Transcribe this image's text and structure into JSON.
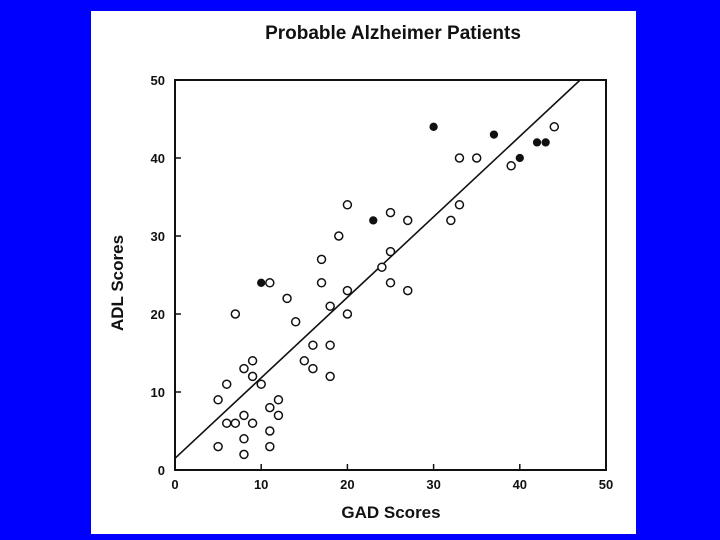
{
  "slide": {
    "background": "#0000ff",
    "panel_color": "#ffffff"
  },
  "chart_data": {
    "type": "scatter",
    "title": "Probable Alzheimer Patients",
    "xlabel": "GAD Scores",
    "ylabel": "ADL Scores",
    "xlim": [
      0,
      50
    ],
    "ylim": [
      0,
      50
    ],
    "xticks": [
      0,
      10,
      20,
      30,
      40,
      50
    ],
    "yticks": [
      0,
      10,
      20,
      30,
      40,
      50
    ],
    "grid": false,
    "legend": "none",
    "series": [
      {
        "marker": "open-circle",
        "points": [
          [
            5,
            3
          ],
          [
            5,
            9
          ],
          [
            6,
            6
          ],
          [
            6,
            11
          ],
          [
            7,
            6
          ],
          [
            7,
            20
          ],
          [
            8,
            2
          ],
          [
            8,
            4
          ],
          [
            8,
            7
          ],
          [
            8,
            13
          ],
          [
            9,
            6
          ],
          [
            9,
            12
          ],
          [
            9,
            14
          ],
          [
            10,
            11
          ],
          [
            11,
            3
          ],
          [
            11,
            5
          ],
          [
            11,
            8
          ],
          [
            11,
            24
          ],
          [
            12,
            7
          ],
          [
            12,
            9
          ],
          [
            13,
            22
          ],
          [
            14,
            19
          ],
          [
            15,
            14
          ],
          [
            16,
            13
          ],
          [
            16,
            16
          ],
          [
            17,
            24
          ],
          [
            17,
            27
          ],
          [
            18,
            12
          ],
          [
            18,
            16
          ],
          [
            18,
            21
          ],
          [
            19,
            30
          ],
          [
            20,
            20
          ],
          [
            20,
            23
          ],
          [
            20,
            34
          ],
          [
            24,
            26
          ],
          [
            25,
            24
          ],
          [
            25,
            28
          ],
          [
            25,
            33
          ],
          [
            27,
            23
          ],
          [
            27,
            32
          ],
          [
            32,
            32
          ],
          [
            33,
            34
          ],
          [
            33,
            40
          ],
          [
            35,
            40
          ],
          [
            39,
            39
          ],
          [
            44,
            44
          ]
        ]
      },
      {
        "marker": "filled-circle",
        "points": [
          [
            10,
            24
          ],
          [
            23,
            32
          ],
          [
            30,
            44
          ],
          [
            37,
            43
          ],
          [
            40,
            40
          ],
          [
            42,
            42
          ],
          [
            43,
            42
          ]
        ]
      }
    ],
    "regression_line": {
      "x": [
        0,
        47
      ],
      "y": [
        1.5,
        50
      ]
    }
  }
}
